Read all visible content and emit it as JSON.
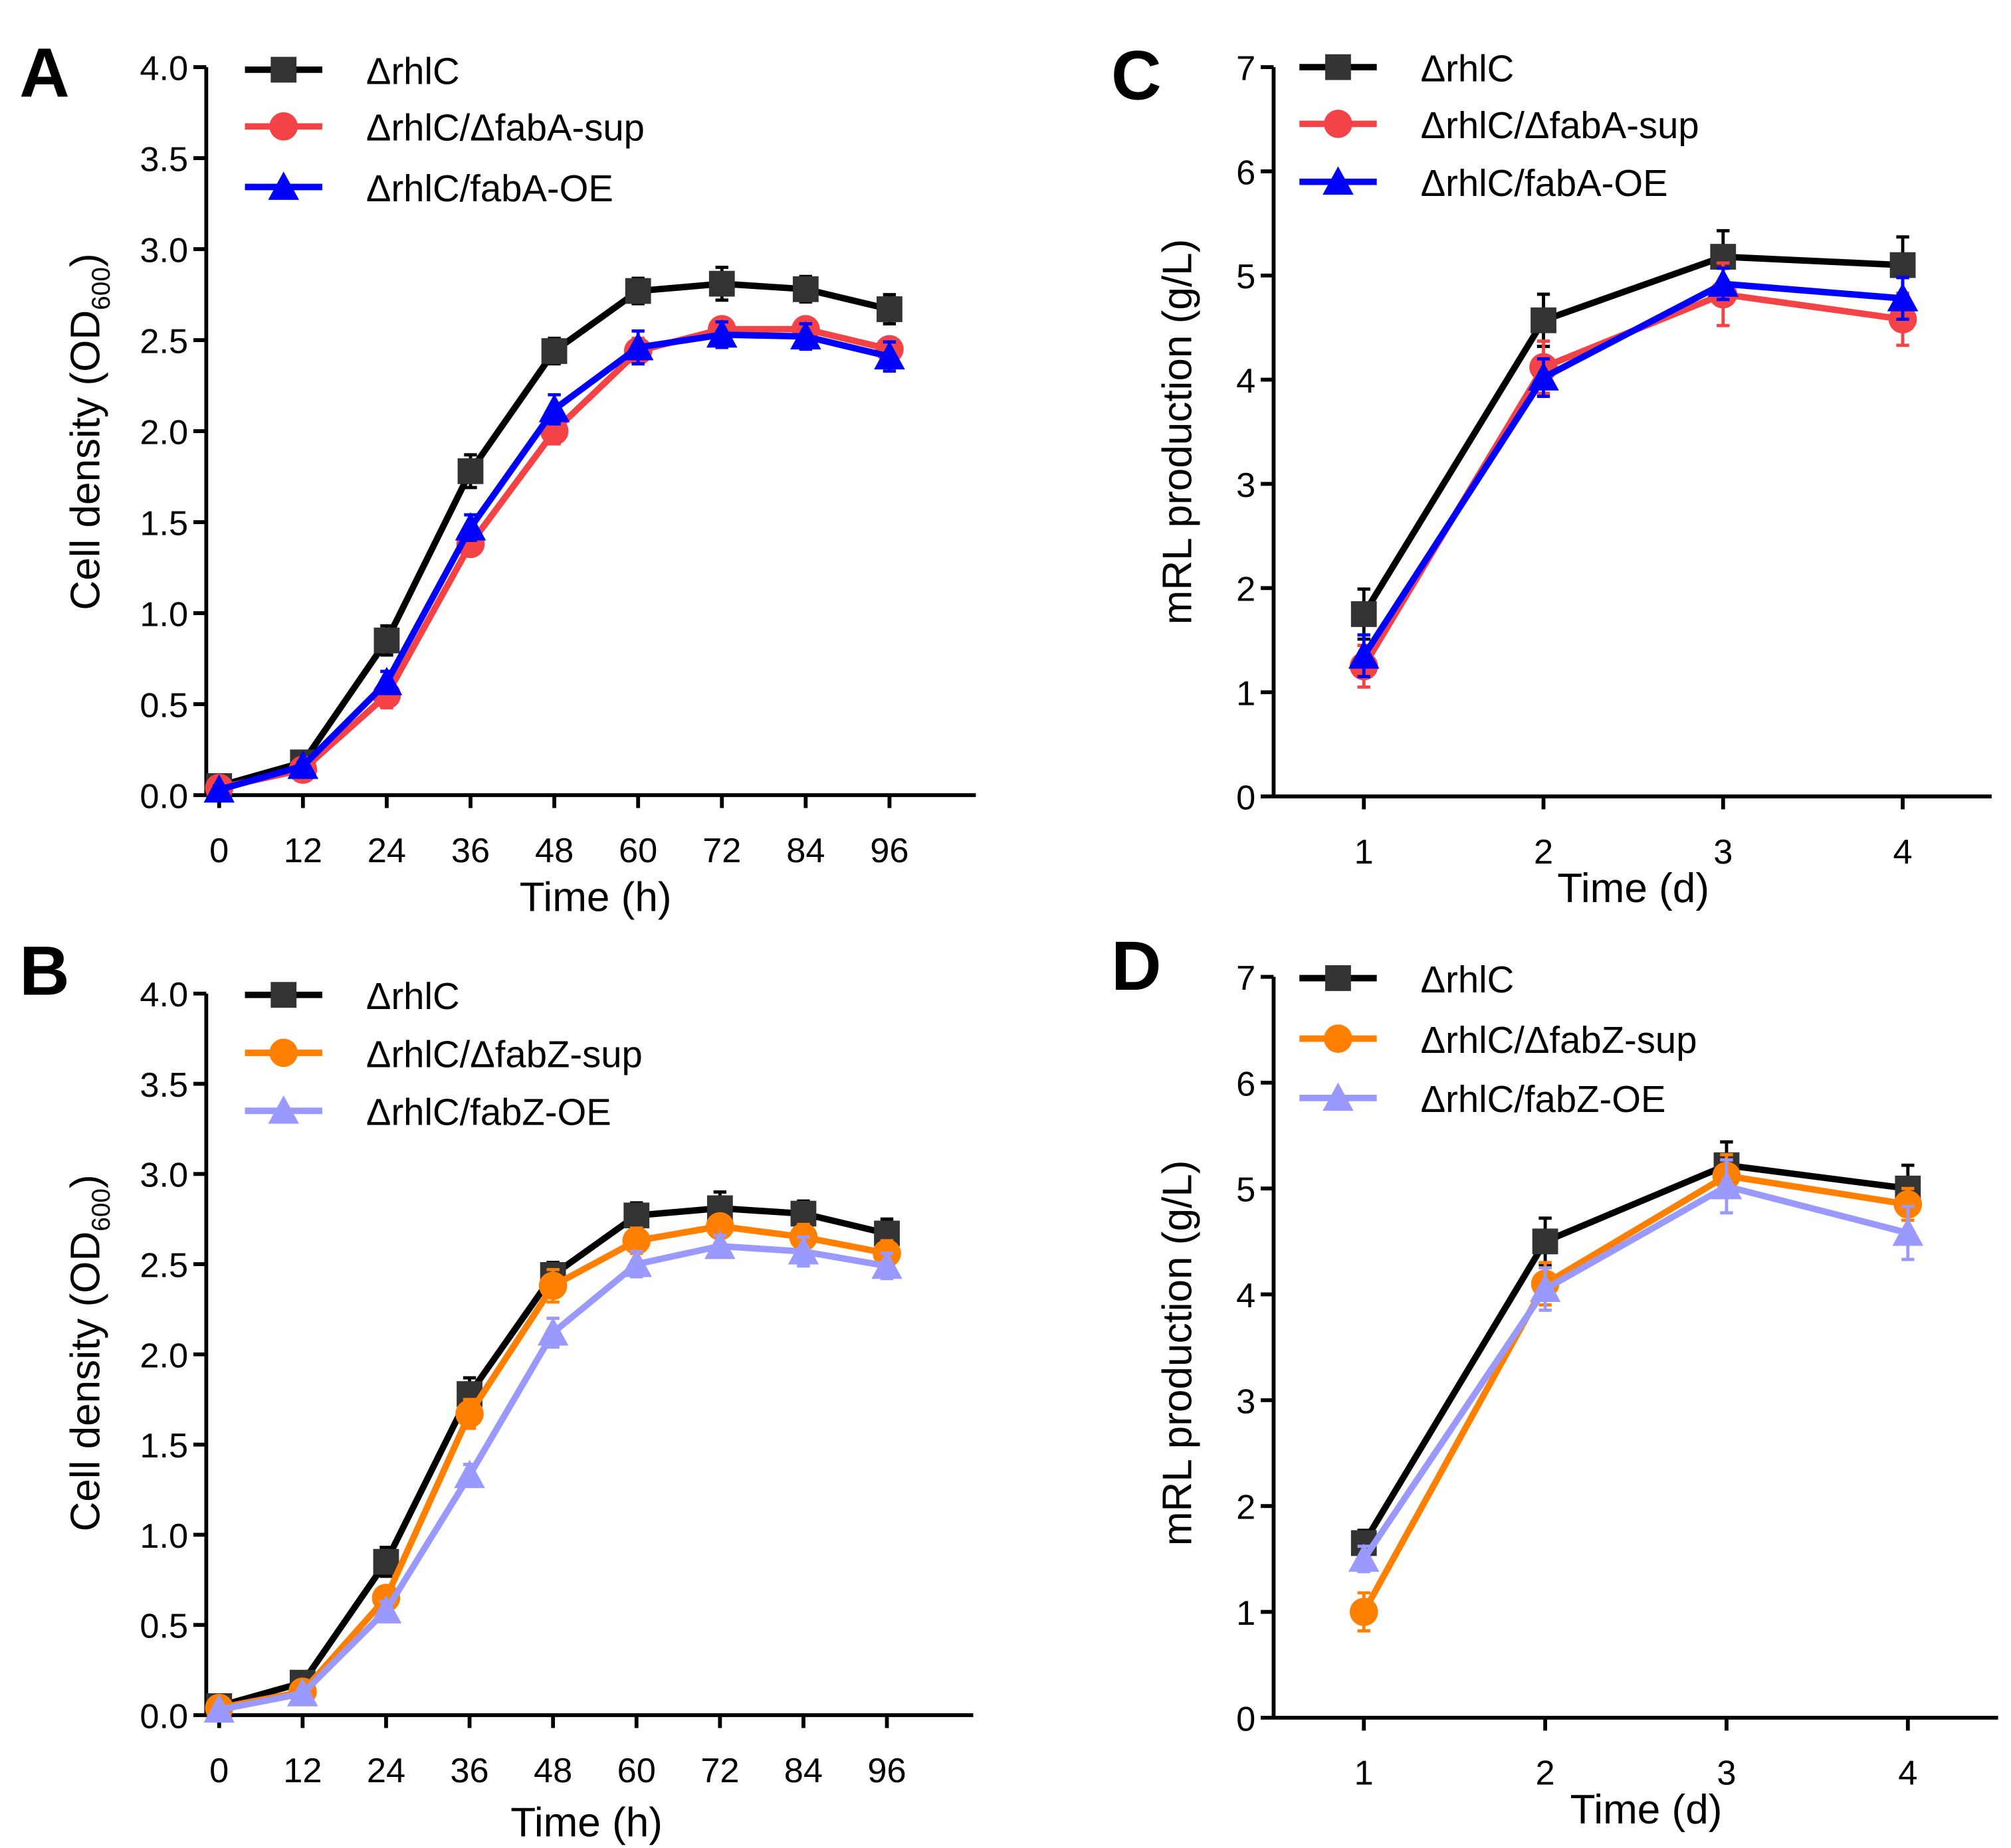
{
  "chart_data": [
    {
      "panel": "A",
      "type": "line",
      "xlabel": "Time (h)",
      "ylabel": "Cell density (OD",
      "ylabel_sub": "600",
      "ylabel_end": ")",
      "x": [
        0,
        12,
        24,
        36,
        48,
        60,
        72,
        84,
        96
      ],
      "xticks": [
        "0",
        "12",
        "24",
        "36",
        "48",
        "60",
        "72",
        "84",
        "96"
      ],
      "yticks": [
        "0.0",
        "0.5",
        "1.0",
        "1.5",
        "2.0",
        "2.5",
        "3.0",
        "3.5",
        "4.0"
      ],
      "ylim": [
        0,
        4
      ],
      "legend": "top-left",
      "series": [
        {
          "name": "ΔrhlC",
          "color": "#000000",
          "marker": "square",
          "values": [
            0.05,
            0.18,
            0.85,
            1.78,
            2.44,
            2.77,
            2.81,
            2.78,
            2.67
          ],
          "errors": [
            0.02,
            0.03,
            0.08,
            0.09,
            0.07,
            0.07,
            0.09,
            0.07,
            0.08
          ]
        },
        {
          "name": "ΔrhlC/ΔfabA-sup",
          "color": "#f44346",
          "marker": "circle",
          "values": [
            0.04,
            0.14,
            0.55,
            1.38,
            2.0,
            2.44,
            2.56,
            2.56,
            2.45
          ],
          "errors": [
            0.02,
            0.03,
            0.07,
            0.06,
            0.07,
            0.07,
            0.06,
            0.06,
            0.06
          ]
        },
        {
          "name": "ΔrhlC/fabA-OE",
          "color": "#0000ff",
          "marker": "triangle",
          "values": [
            0.03,
            0.16,
            0.62,
            1.47,
            2.12,
            2.46,
            2.53,
            2.52,
            2.41
          ],
          "errors": [
            0.02,
            0.02,
            0.06,
            0.07,
            0.08,
            0.09,
            0.07,
            0.07,
            0.08
          ]
        }
      ]
    },
    {
      "panel": "B",
      "type": "line",
      "xlabel": "Time (h)",
      "ylabel": "Cell density (OD",
      "ylabel_sub": "600",
      "ylabel_end": ")",
      "x": [
        0,
        12,
        24,
        36,
        48,
        60,
        72,
        84,
        96
      ],
      "xticks": [
        "0",
        "12",
        "24",
        "36",
        "48",
        "60",
        "72",
        "84",
        "96"
      ],
      "yticks": [
        "0.0",
        "0.5",
        "1.0",
        "1.5",
        "2.0",
        "2.5",
        "3.0",
        "3.5",
        "4.0"
      ],
      "ylim": [
        0,
        4
      ],
      "legend": "top-left",
      "series": [
        {
          "name": "ΔrhlC",
          "color": "#000000",
          "marker": "square",
          "values": [
            0.05,
            0.18,
            0.85,
            1.78,
            2.44,
            2.77,
            2.81,
            2.78,
            2.67
          ],
          "errors": [
            0.02,
            0.03,
            0.08,
            0.09,
            0.07,
            0.07,
            0.09,
            0.07,
            0.08
          ]
        },
        {
          "name": "ΔrhlC/ΔfabZ-sup",
          "color": "#ff8000",
          "marker": "circle",
          "values": [
            0.04,
            0.13,
            0.65,
            1.67,
            2.38,
            2.63,
            2.71,
            2.65,
            2.56
          ],
          "errors": [
            0.02,
            0.02,
            0.06,
            0.08,
            0.09,
            0.07,
            0.06,
            0.07,
            0.07
          ]
        },
        {
          "name": "ΔrhlC/fabZ-OE",
          "color": "#9999ff",
          "marker": "triangle",
          "values": [
            0.03,
            0.12,
            0.58,
            1.33,
            2.12,
            2.5,
            2.6,
            2.57,
            2.49
          ],
          "errors": [
            0.02,
            0.02,
            0.05,
            0.06,
            0.08,
            0.07,
            0.06,
            0.08,
            0.07
          ]
        }
      ]
    },
    {
      "panel": "C",
      "type": "line",
      "xlabel": "Time (d)",
      "ylabel": "mRL production (g/L)",
      "x": [
        1,
        2,
        3,
        4
      ],
      "xticks": [
        "1",
        "2",
        "3",
        "4"
      ],
      "yticks": [
        "0",
        "1",
        "2",
        "3",
        "4",
        "5",
        "6",
        "7"
      ],
      "ylim": [
        0,
        7
      ],
      "legend": "top-left",
      "series": [
        {
          "name": "ΔrhlC",
          "color": "#000000",
          "marker": "square",
          "values": [
            1.75,
            4.57,
            5.18,
            5.1
          ],
          "errors": [
            0.24,
            0.25,
            0.25,
            0.27
          ]
        },
        {
          "name": "ΔrhlC/ΔfabA-sup",
          "color": "#f44346",
          "marker": "circle",
          "values": [
            1.25,
            4.12,
            4.82,
            4.58
          ],
          "errors": [
            0.2,
            0.25,
            0.3,
            0.25
          ]
        },
        {
          "name": "ΔrhlC/fabA-OE",
          "color": "#0000ff",
          "marker": "triangle",
          "values": [
            1.35,
            4.02,
            4.92,
            4.78
          ],
          "errors": [
            0.2,
            0.18,
            0.15,
            0.2
          ]
        }
      ]
    },
    {
      "panel": "D",
      "type": "line",
      "xlabel": "Time (d)",
      "ylabel": "mRL production (g/L)",
      "x": [
        1,
        2,
        3,
        4
      ],
      "xticks": [
        "1",
        "2",
        "3",
        "4"
      ],
      "yticks": [
        "0",
        "1",
        "2",
        "3",
        "4",
        "5",
        "6",
        "7"
      ],
      "ylim": [
        0,
        7
      ],
      "legend": "top-left",
      "series": [
        {
          "name": "ΔrhlC",
          "color": "#000000",
          "marker": "square",
          "values": [
            1.65,
            4.5,
            5.22,
            5.0
          ],
          "errors": [
            0.12,
            0.22,
            0.22,
            0.22
          ]
        },
        {
          "name": "ΔrhlC/ΔfabZ-sup",
          "color": "#ff8000",
          "marker": "circle",
          "values": [
            1.0,
            4.1,
            5.12,
            4.85
          ],
          "errors": [
            0.18,
            0.2,
            0.2,
            0.15
          ]
        },
        {
          "name": "ΔrhlC/fabZ-OE",
          "color": "#9999ff",
          "marker": "triangle",
          "values": [
            1.5,
            4.05,
            5.02,
            4.58
          ],
          "errors": [
            0.12,
            0.2,
            0.25,
            0.25
          ]
        }
      ]
    }
  ]
}
